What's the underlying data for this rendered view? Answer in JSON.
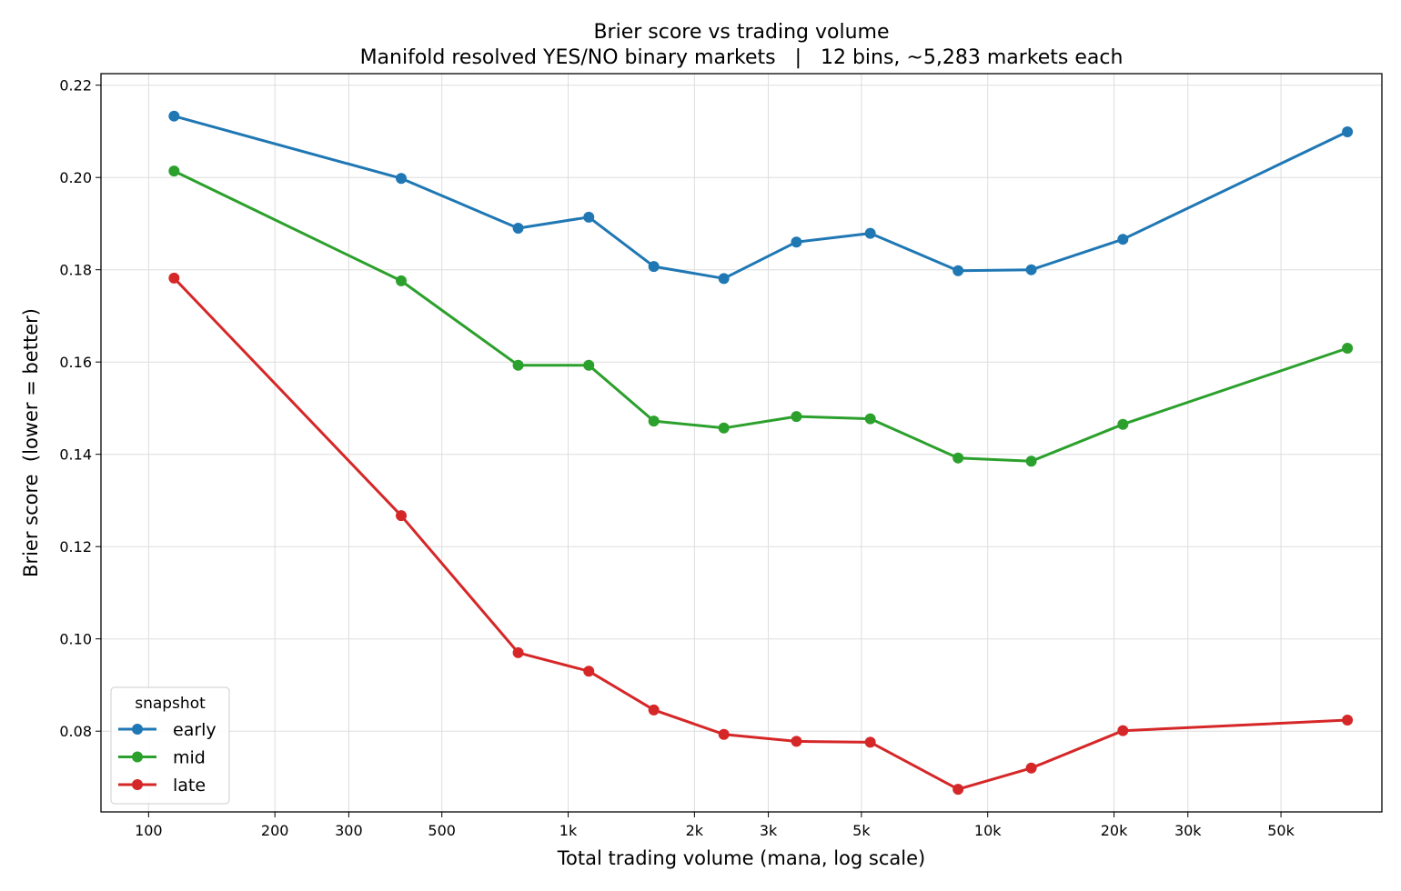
{
  "chart_data": {
    "type": "line",
    "title": "Brier score vs trading volume",
    "subtitle": "Manifold resolved YES/NO binary markets   |   12 bins, ~5,283 markets each",
    "xlabel": "Total trading volume (mana, log scale)",
    "ylabel": "Brier score  (lower = better)",
    "xscale": "log",
    "xlim": [
      77,
      87000
    ],
    "ylim": [
      0.0625,
      0.2225
    ],
    "x_ticks": [
      {
        "value": 100,
        "label": "100"
      },
      {
        "value": 200,
        "label": "200"
      },
      {
        "value": 300,
        "label": "300"
      },
      {
        "value": 500,
        "label": "500"
      },
      {
        "value": 1000,
        "label": "1k"
      },
      {
        "value": 2000,
        "label": "2k"
      },
      {
        "value": 3000,
        "label": "3k"
      },
      {
        "value": 5000,
        "label": "5k"
      },
      {
        "value": 10000,
        "label": "10k"
      },
      {
        "value": 20000,
        "label": "20k"
      },
      {
        "value": 30000,
        "label": "30k"
      },
      {
        "value": 50000,
        "label": "50k"
      }
    ],
    "y_ticks": [
      {
        "value": 0.08,
        "label": "0.08"
      },
      {
        "value": 0.1,
        "label": "0.10"
      },
      {
        "value": 0.12,
        "label": "0.12"
      },
      {
        "value": 0.14,
        "label": "0.14"
      },
      {
        "value": 0.16,
        "label": "0.16"
      },
      {
        "value": 0.18,
        "label": "0.18"
      },
      {
        "value": 0.2,
        "label": "0.20"
      },
      {
        "value": 0.22,
        "label": "0.22"
      }
    ],
    "grid": true,
    "legend": {
      "title": "snapshot",
      "placement": "lower-left"
    },
    "x": [
      115,
      400,
      760,
      1120,
      1600,
      2350,
      3500,
      5250,
      8500,
      12700,
      21000,
      72000
    ],
    "series": [
      {
        "name": "early",
        "color": "#1f77b4",
        "values": [
          0.2133,
          0.1998,
          0.189,
          0.1914,
          0.1807,
          0.1781,
          0.186,
          0.1879,
          0.1798,
          0.18,
          0.1866,
          0.2099
        ]
      },
      {
        "name": "mid",
        "color": "#2ca02c",
        "values": [
          0.2014,
          0.1776,
          0.1593,
          0.1593,
          0.1472,
          0.1457,
          0.1482,
          0.1477,
          0.1392,
          0.1385,
          0.1465,
          0.163
        ]
      },
      {
        "name": "late",
        "color": "#d62728",
        "values": [
          0.1782,
          0.1267,
          0.097,
          0.093,
          0.0846,
          0.0793,
          0.0778,
          0.0776,
          0.0674,
          0.072,
          0.0801,
          0.0824
        ]
      }
    ]
  }
}
